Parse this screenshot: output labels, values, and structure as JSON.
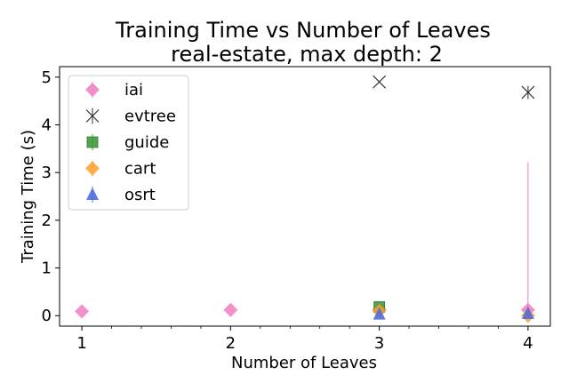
{
  "chart_data": {
    "type": "scatter",
    "title": [
      "Training Time vs Number of Leaves",
      "real-estate, max depth: 2"
    ],
    "xlabel": "Number of Leaves",
    "ylabel": "Training Time (s)",
    "xlim": [
      0.85,
      4.15
    ],
    "ylim": [
      -0.22,
      5.22
    ],
    "x_ticks": [
      1,
      2,
      3,
      4
    ],
    "x_tick_labels": [
      "1",
      "2",
      "3",
      "4"
    ],
    "y_ticks": [
      0,
      1,
      2,
      3,
      4,
      5
    ],
    "y_tick_labels": [
      "0",
      "1",
      "2",
      "3",
      "4",
      "5"
    ],
    "grid": false,
    "legend_position": "upper-left",
    "series": [
      {
        "name": "iai",
        "color": "#f07ec0",
        "marker": "diamond",
        "points": [
          {
            "x": 1,
            "y": 0.09,
            "err": 0
          },
          {
            "x": 2,
            "y": 0.12,
            "err": 0
          },
          {
            "x": 3,
            "y": 0.13,
            "err": 0
          },
          {
            "x": 4,
            "y": 0.12,
            "err": 3.1
          }
        ]
      },
      {
        "name": "evtree",
        "color": "#333333",
        "marker": "x",
        "points": [
          {
            "x": 3,
            "y": 4.9,
            "err": 0
          },
          {
            "x": 4,
            "y": 4.68,
            "err": 0.14
          }
        ]
      },
      {
        "name": "guide",
        "color": "#3f9a3f",
        "marker": "square",
        "points": [
          {
            "x": 3,
            "y": 0.18,
            "err": 0
          }
        ]
      },
      {
        "name": "cart",
        "color": "#ff9f2a",
        "marker": "diamond",
        "points": [
          {
            "x": 3,
            "y": 0.1,
            "err": 0
          },
          {
            "x": 4,
            "y": 0.0,
            "err": 0
          }
        ]
      },
      {
        "name": "osrt",
        "color": "#4c6fdc",
        "marker": "triangle",
        "points": [
          {
            "x": 3,
            "y": 0.03,
            "err": 0
          },
          {
            "x": 4,
            "y": 0.04,
            "err": 0.09
          }
        ]
      }
    ]
  }
}
